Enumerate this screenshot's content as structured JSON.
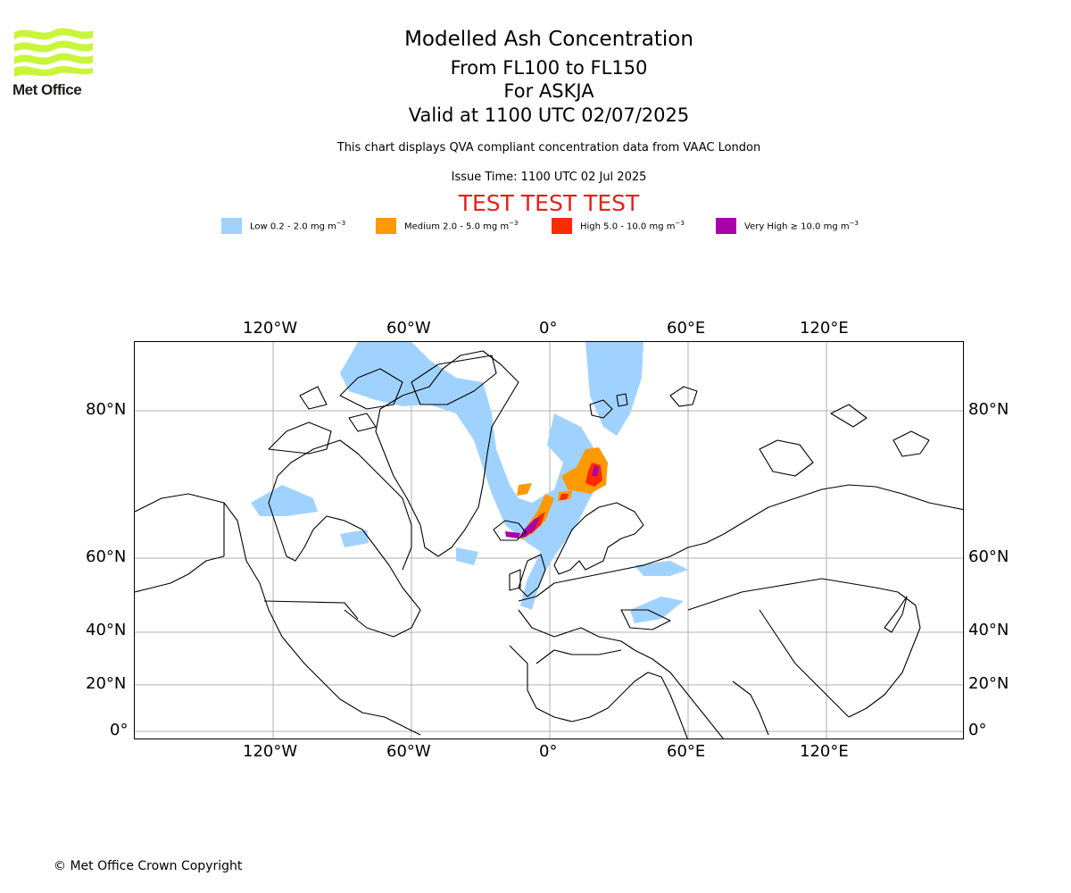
{
  "logo": {
    "text": "Met Office",
    "color": "#c8f53a"
  },
  "header": {
    "title": "Modelled Ash Concentration",
    "levels": "From FL100 to FL150",
    "volcano": "For ASKJA",
    "valid": "Valid at 1100 UTC 02/07/2025",
    "description": "This chart displays QVA compliant concentration data from VAAC London",
    "issue_time": "Issue Time: 1100 UTC 02 Jul 2025",
    "test_banner": "TEST TEST TEST"
  },
  "legend": [
    {
      "label": "Low 0.2 - 2.0 mg m",
      "exp": "−3",
      "color": "#a0d2ff"
    },
    {
      "label": "Medium 2.0 - 5.0 mg m",
      "exp": "−3",
      "color": "#ff9900"
    },
    {
      "label": "High 5.0 - 10.0 mg m",
      "exp": "−3",
      "color": "#ff2a00"
    },
    {
      "label": "Very High  ≥  10.0 mg m",
      "exp": "−3",
      "color": "#aa00aa"
    }
  ],
  "map": {
    "lon_ticks_top": [
      "120°W",
      "60°W",
      "0°",
      "60°E",
      "120°E"
    ],
    "lon_ticks_bottom": [
      "120°W",
      "60°W",
      "0°",
      "60°E",
      "120°E"
    ],
    "lat_ticks_left": [
      "80°N",
      "60°N",
      "40°N",
      "20°N",
      "0°"
    ],
    "lat_ticks_right": [
      "80°N",
      "60°N",
      "40°N",
      "20°N",
      "0°"
    ],
    "lon_values": [
      -120,
      -60,
      0,
      60,
      120
    ],
    "lat_values": [
      80,
      60,
      40,
      20,
      0
    ],
    "gridlines": true
  },
  "footer": {
    "copyright": "© Met Office Crown Copyright"
  }
}
